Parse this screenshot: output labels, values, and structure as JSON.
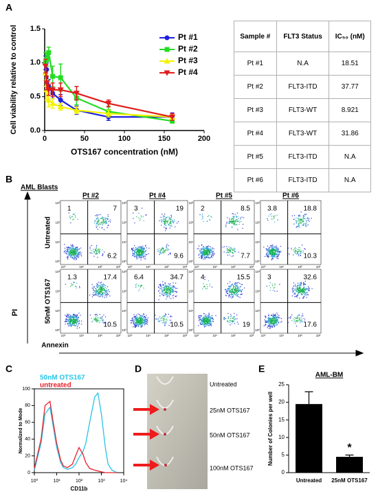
{
  "panel_labels": [
    "A",
    "B",
    "C",
    "D",
    "E"
  ],
  "chart_data": [
    {
      "type": "line",
      "x_label": "OTS167 concentration (nM)",
      "y_label": "Cell viability relative to control",
      "x": [
        1,
        2.5,
        5,
        10,
        20,
        40,
        80,
        160
      ],
      "xlim": [
        0,
        200
      ],
      "xticks": [
        0,
        50,
        100,
        150,
        200
      ],
      "ylim": [
        0,
        1.5
      ],
      "yticks": [
        {
          "value": 0,
          "label": "0.0"
        },
        0.5,
        {
          "value": 1,
          "label": "1.0"
        },
        1.5
      ],
      "legend": "upper right",
      "series": [
        {
          "name": "Pt #1",
          "color": "#1f1fe0",
          "marker": "circle",
          "values": [
            1.0,
            0.9,
            0.65,
            0.55,
            0.45,
            0.3,
            0.2,
            0.2
          ],
          "errors": [
            0.1,
            0.1,
            0.1,
            0.08,
            0.08,
            0.06,
            0.05,
            0.06
          ]
        },
        {
          "name": "Pt #2",
          "color": "#22dd22",
          "marker": "square",
          "values": [
            1.0,
            1.05,
            1.15,
            0.8,
            0.78,
            0.48,
            0.28,
            0.14
          ],
          "errors": [
            0.15,
            0.1,
            0.08,
            0.15,
            0.2,
            0.1,
            0.08,
            0.03
          ]
        },
        {
          "name": "Pt #3",
          "color": "#f2f200",
          "marker": "triangle-up",
          "values": [
            0.85,
            0.6,
            0.45,
            0.4,
            0.35,
            0.3,
            0.25,
            0.2
          ],
          "errors": [
            0.2,
            0.15,
            0.1,
            0.07,
            0.05,
            0.05,
            0.05,
            0.04
          ]
        },
        {
          "name": "Pt #4",
          "color": "#e01b1b",
          "marker": "triangle-down",
          "values": [
            0.95,
            0.7,
            0.6,
            0.6,
            0.6,
            0.55,
            0.4,
            0.2
          ],
          "errors": [
            0.1,
            0.1,
            0.08,
            0.1,
            0.1,
            0.1,
            0.05,
            0.05
          ]
        }
      ]
    },
    {
      "type": "line",
      "x_label": "CD11b",
      "y_label": "Normalized to Mode",
      "log_x": true,
      "x": [
        1,
        2,
        3,
        5,
        7,
        10,
        15,
        20,
        30,
        50,
        70,
        100,
        150,
        200,
        300,
        500,
        700,
        1000,
        1500,
        2000,
        3000,
        5000
      ],
      "xlim": [
        1,
        10000
      ],
      "xticks": [
        {
          "value": 1,
          "label": "10⁰"
        },
        {
          "value": 10,
          "label": "10¹"
        },
        {
          "value": 100,
          "label": "10²"
        },
        {
          "value": 1000,
          "label": "10³"
        },
        {
          "value": 10000,
          "label": "10⁴"
        }
      ],
      "ylim": [
        0,
        100
      ],
      "yticks": [
        0,
        20,
        40,
        60,
        80,
        100
      ],
      "legend": "upper left",
      "series": [
        {
          "name": "50nM OTS167",
          "color": "#27c4e6",
          "values": [
            3,
            35,
            70,
            78,
            55,
            30,
            12,
            6,
            4,
            6,
            10,
            18,
            25,
            35,
            60,
            90,
            95,
            70,
            30,
            10,
            3,
            0
          ]
        },
        {
          "name": "untreated",
          "color": "#e8202a",
          "values": [
            5,
            40,
            80,
            85,
            60,
            35,
            15,
            8,
            6,
            10,
            20,
            30,
            22,
            12,
            5,
            3,
            2,
            1,
            0,
            0,
            0,
            0
          ]
        }
      ]
    },
    {
      "type": "bar",
      "title": "AML-BM",
      "y_label": "Number of Colonies per well",
      "categories": [
        "Untreated",
        "25nM OTS167"
      ],
      "values": [
        19.5,
        4.5
      ],
      "errors": [
        3.5,
        0.5
      ],
      "color": "#000000",
      "annotation": "*",
      "ylim": [
        0,
        25
      ],
      "yticks": [
        0,
        5,
        10,
        15,
        20,
        25
      ]
    }
  ],
  "table": {
    "header": [
      "Sample #",
      "FLT3 Status",
      "IC₅₀ (nM)"
    ],
    "rows": [
      [
        "Pt #1",
        "N.A",
        18.51
      ],
      [
        "Pt #2",
        "FLT3-ITD",
        37.77
      ],
      [
        "Pt #3",
        "FLT3-WT",
        8.921
      ],
      [
        "Pt #4",
        "FLT3-WT",
        31.86
      ],
      [
        "Pt #5",
        "FLT3-ITD",
        "N.A"
      ],
      [
        "Pt #6",
        "FLT3-ITD",
        "N.A"
      ]
    ]
  },
  "flow": {
    "title": "AML Blasts",
    "columns": [
      "Pt #2",
      "Pt #4",
      "Pt #5",
      "Pt #6"
    ],
    "rows": [
      "Untreated",
      "50nM OTS167"
    ],
    "y_label": "PI",
    "x_label": "Annexin",
    "axis_tick_labels": [
      "10⁰",
      "10¹",
      "10²",
      "10³"
    ],
    "quadrants": [
      [
        [
          1,
          7,
          6.2
        ],
        [
          3,
          19,
          9.6
        ],
        [
          2,
          8.5,
          7.7
        ],
        [
          3.8,
          18.8,
          10.3
        ]
      ],
      [
        [
          1.3,
          17.4,
          10.5
        ],
        [
          6.4,
          34.7,
          10.5
        ],
        [
          4,
          15.5,
          19
        ],
        [
          3,
          32.6,
          17.6
        ]
      ]
    ]
  },
  "wells": {
    "labels": [
      "Untreated",
      "25nM OTS167",
      "50nM OTS167",
      "100nM OTS167"
    ]
  }
}
